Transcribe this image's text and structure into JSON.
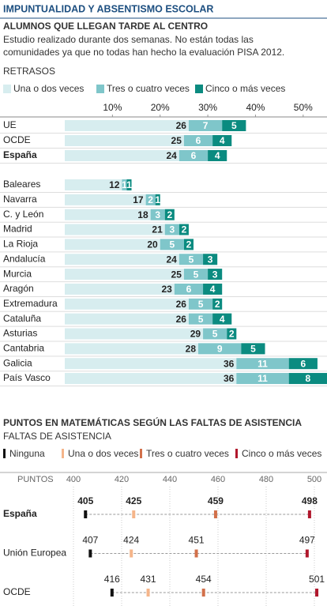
{
  "chart_data": [
    {
      "type": "stacked-bar",
      "title": "IMPUNTUALIDAD Y ABSENTISMO ESCOLAR",
      "subtitle": "ALUMNOS QUE LLEGAN TARDE AL CENTRO",
      "description": [
        "Estudio realizado durante dos semanas. No están todas las",
        "comunidades ya que no todas han hecho la evaluación PISA 2012."
      ],
      "section_label": "RETRASOS",
      "categories": [
        "UE",
        "OCDE",
        "España",
        "Baleares",
        "Navarra",
        "C. y León",
        "Madrid",
        "La Rioja",
        "Andalucía",
        "Murcia",
        "Aragón",
        "Extremadura",
        "Cataluña",
        "Asturias",
        "Cantabria",
        "Galicia",
        "País Vasco"
      ],
      "series": [
        {
          "name": "Una o dos veces",
          "color": "#d7edef",
          "values": [
            26,
            25,
            24,
            12,
            17,
            18,
            21,
            20,
            24,
            25,
            23,
            26,
            26,
            29,
            28,
            36,
            36
          ]
        },
        {
          "name": "Tres o cuatro veces",
          "color": "#7fc6ca",
          "values": [
            7,
            6,
            6,
            1,
            2,
            3,
            3,
            5,
            5,
            5,
            6,
            5,
            5,
            5,
            9,
            11,
            11
          ]
        },
        {
          "name": "Cinco o más veces",
          "color": "#0b8b80",
          "values": [
            5,
            4,
            4,
            1,
            1,
            2,
            2,
            2,
            3,
            3,
            4,
            2,
            4,
            2,
            5,
            6,
            8
          ]
        }
      ],
      "xlim": [
        0,
        55
      ],
      "xticks": [
        {
          "value": 10,
          "label": "10%"
        },
        {
          "value": 20,
          "label": "20%"
        },
        {
          "value": 30,
          "label": "30%"
        },
        {
          "value": 40,
          "label": "40%"
        },
        {
          "value": 50,
          "label": "50%"
        }
      ]
    },
    {
      "type": "dot",
      "title": "PUNTOS EN MATEMÁTICAS SEGÚN LAS FALTAS DE ASISTENCIA",
      "subtitle": "FALTAS DE ASISTENCIA",
      "x_label": "PUNTOS",
      "categories": [
        "España",
        "Unión Europea",
        "OCDE"
      ],
      "series": [
        {
          "name": "Ninguna",
          "color": "#111111",
          "values": [
            405,
            407,
            416
          ]
        },
        {
          "name": "Una o dos veces",
          "color": "#f5b58a",
          "values": [
            425,
            424,
            431
          ]
        },
        {
          "name": "Tres o cuatro veces",
          "color": "#d2704a",
          "values": [
            459,
            451,
            454
          ]
        },
        {
          "name": "Cinco o más veces",
          "color": "#b0172c",
          "values": [
            498,
            497,
            501
          ]
        }
      ],
      "xlim": [
        400,
        500
      ],
      "xticks": [
        400,
        420,
        440,
        460,
        480,
        500
      ],
      "grid": true
    }
  ]
}
